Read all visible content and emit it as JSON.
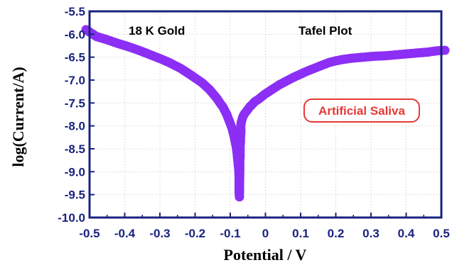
{
  "chart_data": {
    "type": "scatter",
    "title": "",
    "xlabel": "Potential / V",
    "ylabel": "log(Current/A)",
    "xlim": [
      -0.5,
      0.5
    ],
    "ylim": [
      -10.0,
      -5.5
    ],
    "x_ticks": [
      "-0.5",
      "-0.4",
      "-0.3",
      "-0.2",
      "-0.1",
      "0",
      "0.1",
      "0.2",
      "0.3",
      "0.4",
      "0.5"
    ],
    "y_ticks": [
      "-5.5",
      "-6.0",
      "-6.5",
      "-7.0",
      "-7.5",
      "-8.0",
      "-8.5",
      "-9.0",
      "-9.5",
      "-10.0"
    ],
    "grid": true,
    "annotations": {
      "sample": "18 K Gold",
      "plot_name": "Tafel Plot",
      "medium": "Artificial Saliva"
    },
    "colors": {
      "series": "#8c2ff5",
      "frame": "#1a237e",
      "badge": "#e53935"
    },
    "series": [
      {
        "x": [
          -0.51,
          -0.5,
          -0.48,
          -0.45,
          -0.42,
          -0.39,
          -0.36,
          -0.33,
          -0.3,
          -0.27,
          -0.24,
          -0.21,
          -0.18,
          -0.16,
          -0.14,
          -0.12,
          -0.11,
          -0.1,
          -0.095,
          -0.09,
          -0.085,
          -0.082,
          -0.08,
          -0.078,
          -0.076,
          -0.075,
          -0.075,
          -0.074,
          -0.073,
          -0.073,
          -0.072,
          -0.072,
          -0.072,
          -0.071,
          -0.071,
          -0.07,
          -0.07,
          -0.07,
          -0.068,
          -0.066,
          -0.064,
          -0.062,
          -0.06,
          -0.056,
          -0.052,
          -0.048,
          -0.044,
          -0.04,
          -0.035,
          -0.03,
          -0.02,
          -0.01,
          0.0,
          0.02,
          0.04,
          0.06,
          0.08,
          0.1,
          0.12,
          0.14,
          0.16,
          0.18,
          0.2,
          0.22,
          0.25,
          0.28,
          0.31,
          0.34,
          0.37,
          0.4,
          0.43,
          0.46,
          0.49,
          0.51
        ],
        "y": [
          -5.9,
          -5.95,
          -6.05,
          -6.12,
          -6.2,
          -6.27,
          -6.35,
          -6.44,
          -6.53,
          -6.63,
          -6.75,
          -6.9,
          -7.06,
          -7.2,
          -7.38,
          -7.6,
          -7.75,
          -7.95,
          -8.05,
          -8.2,
          -8.38,
          -8.5,
          -8.65,
          -8.8,
          -8.95,
          -9.1,
          -9.45,
          -9.55,
          -8.95,
          -8.8,
          -8.65,
          -8.55,
          -8.45,
          -8.35,
          -8.25,
          -8.15,
          -8.05,
          -7.98,
          -7.9,
          -7.85,
          -7.8,
          -7.77,
          -7.74,
          -7.7,
          -7.66,
          -7.62,
          -7.58,
          -7.55,
          -7.51,
          -7.47,
          -7.42,
          -7.36,
          -7.3,
          -7.2,
          -7.1,
          -7.02,
          -6.94,
          -6.87,
          -6.8,
          -6.74,
          -6.68,
          -6.62,
          -6.58,
          -6.55,
          -6.52,
          -6.5,
          -6.48,
          -6.47,
          -6.45,
          -6.43,
          -6.41,
          -6.39,
          -6.36,
          -6.35
        ]
      }
    ]
  }
}
